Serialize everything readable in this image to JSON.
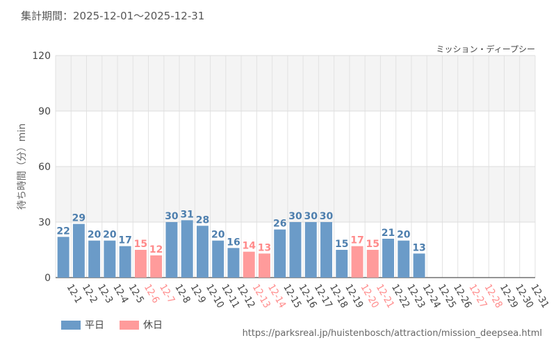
{
  "period_label": "集計期間：2025-12-01～2025-12-31",
  "attraction_name": "ミッション・ディープシー",
  "source_url": "https://parksreal.jp/huistenbosch/attraction/mission_deepsea.html",
  "legend": {
    "weekday": "平日",
    "holiday": "休日"
  },
  "colors": {
    "weekday": "#6b9bc8",
    "holiday": "#ff9b9b",
    "weekday_text": "#4e7fae",
    "holiday_text": "#ff8a8a"
  },
  "chart_data": {
    "type": "bar",
    "title": "",
    "xlabel": "",
    "ylabel": "待ち時間（分）min",
    "ylim": [
      0,
      120
    ],
    "yticks": [
      0,
      30,
      60,
      90,
      120
    ],
    "categories": [
      "12-1",
      "12-2",
      "12-3",
      "12-4",
      "12-5",
      "12-6",
      "12-7",
      "12-8",
      "12-9",
      "12-10",
      "12-11",
      "12-12",
      "12-13",
      "12-14",
      "12-15",
      "12-16",
      "12-17",
      "12-18",
      "12-19",
      "12-20",
      "12-21",
      "12-22",
      "12-23",
      "12-24",
      "12-25",
      "12-26",
      "12-27",
      "12-28",
      "12-29",
      "12-30",
      "12-31"
    ],
    "values": [
      22,
      29,
      20,
      20,
      17,
      15,
      12,
      30,
      31,
      28,
      20,
      16,
      14,
      13,
      26,
      30,
      30,
      30,
      15,
      17,
      15,
      21,
      20,
      13,
      null,
      null,
      null,
      null,
      null,
      null,
      null
    ],
    "day_type": [
      "weekday",
      "weekday",
      "weekday",
      "weekday",
      "weekday",
      "holiday",
      "holiday",
      "weekday",
      "weekday",
      "weekday",
      "weekday",
      "weekday",
      "holiday",
      "holiday",
      "weekday",
      "weekday",
      "weekday",
      "weekday",
      "weekday",
      "holiday",
      "holiday",
      "weekday",
      "weekday",
      "weekday",
      "weekday",
      "weekday",
      "holiday",
      "holiday",
      "weekday",
      "weekday",
      "weekday"
    ]
  }
}
